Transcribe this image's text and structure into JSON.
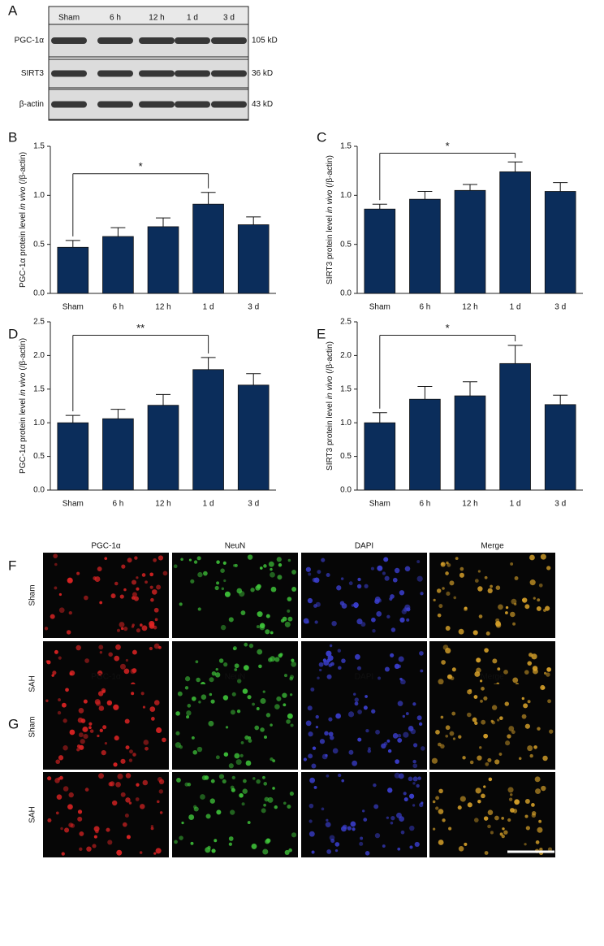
{
  "blot": {
    "panel": "A",
    "lanes": [
      "Sham",
      "6 h",
      "12 h",
      "1 d",
      "3 d"
    ],
    "rows": [
      {
        "label": "PGC-1α",
        "size": "105 kD"
      },
      {
        "label": "SIRT3",
        "size": "36 kD"
      },
      {
        "label": "β-actin",
        "size": "43 kD"
      }
    ]
  },
  "chart_data": [
    {
      "type": "bar",
      "panel": "B",
      "ylabel": {
        "pre": "PGC-1α protein level",
        "italic": "in vivo",
        "post": "(/β-actin)"
      },
      "categories": [
        "Sham",
        "6 h",
        "12 h",
        "1 d",
        "3 d"
      ],
      "values": [
        0.47,
        0.58,
        0.68,
        0.91,
        0.7
      ],
      "errors": [
        0.07,
        0.09,
        0.09,
        0.12,
        0.08
      ],
      "color": "#0b2d5b",
      "ylim": [
        0,
        1.5
      ],
      "yticks": [
        {
          "value": 0,
          "label": "0.0"
        },
        0.5,
        {
          "value": 1,
          "label": "1.0"
        },
        1.5
      ],
      "significance": {
        "label": "*",
        "y": 1.22
      }
    },
    {
      "type": "bar",
      "panel": "C",
      "ylabel": {
        "pre": "SIRT3 protein level",
        "italic": "in vivo",
        "post": "(/β-actin)"
      },
      "categories": [
        "Sham",
        "6 h",
        "12 h",
        "1 d",
        "3 d"
      ],
      "values": [
        0.86,
        0.96,
        1.05,
        1.24,
        1.04
      ],
      "errors": [
        0.05,
        0.08,
        0.06,
        0.1,
        0.09
      ],
      "color": "#0b2d5b",
      "ylim": [
        0,
        1.5
      ],
      "yticks": [
        {
          "value": 0,
          "label": "0.0"
        },
        0.5,
        {
          "value": 1,
          "label": "1.0"
        },
        1.5
      ],
      "significance": {
        "label": "*",
        "y": 1.43
      }
    },
    {
      "type": "bar",
      "panel": "D",
      "ylabel": {
        "pre": "PGC-1α protein level",
        "italic": "in vivo",
        "post": "(/β-actin)"
      },
      "categories": [
        "Sham",
        "6 h",
        "12 h",
        "1 d",
        "3 d"
      ],
      "values": [
        1.0,
        1.06,
        1.26,
        1.79,
        1.56
      ],
      "errors": [
        0.11,
        0.14,
        0.16,
        0.18,
        0.17
      ],
      "color": "#0b2d5b",
      "ylim": [
        0,
        2.5
      ],
      "yticks": [
        {
          "value": 0,
          "label": "0.0"
        },
        0.5,
        {
          "value": 1,
          "label": "1.0"
        },
        1.5,
        {
          "value": 2,
          "label": "2.0"
        },
        2.5
      ],
      "significance": {
        "label": "**",
        "y": 2.3
      }
    },
    {
      "type": "bar",
      "panel": "E",
      "ylabel": {
        "pre": "SIRT3 protein level",
        "italic": "in vivo",
        "post": "(/β-actin)"
      },
      "categories": [
        "Sham",
        "6 h",
        "12 h",
        "1 d",
        "3 d"
      ],
      "values": [
        1.0,
        1.35,
        1.4,
        1.88,
        1.27
      ],
      "errors": [
        0.15,
        0.19,
        0.21,
        0.27,
        0.14
      ],
      "color": "#0b2d5b",
      "ylim": [
        0,
        2.5
      ],
      "yticks": [
        {
          "value": 0,
          "label": "0.0"
        },
        0.5,
        {
          "value": 1,
          "label": "1.0"
        },
        1.5,
        {
          "value": 2,
          "label": "2.0"
        },
        2.5
      ],
      "significance": {
        "label": "*",
        "y": 2.3
      }
    }
  ],
  "fluorescence": [
    {
      "panel": "F",
      "columns": [
        "PGC-1α",
        "NeuN",
        "DAPI",
        "Merge"
      ],
      "rows": [
        "Sham",
        "SAH"
      ]
    },
    {
      "panel": "G",
      "columns": [
        "PGC-1α",
        "NeuN",
        "DAPI",
        "Merge"
      ],
      "rows": [
        "Sham",
        "SAH"
      ]
    }
  ]
}
